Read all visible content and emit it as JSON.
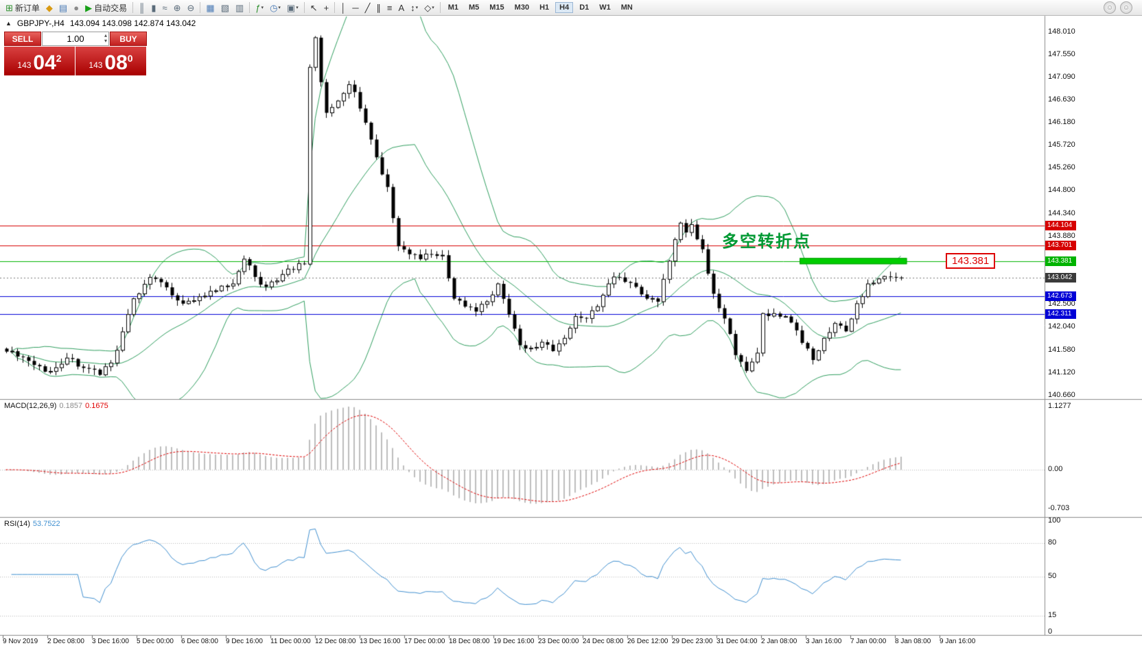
{
  "toolbar": {
    "buttons": [
      {
        "name": "new-order-button",
        "glyph": "⊞",
        "color": "#2e8f2e",
        "label": "新订单"
      },
      {
        "name": "history-center-icon",
        "glyph": "◆",
        "color": "#d99a12"
      },
      {
        "name": "market-watch-icon",
        "glyph": "▤",
        "color": "#4a7ab5"
      },
      {
        "name": "data-window-icon",
        "glyph": "●",
        "color": "#8a8a8a"
      },
      {
        "name": "autotrade-button",
        "glyph": "▶",
        "color": "#18a018",
        "label": "自动交易"
      },
      {
        "sep": true
      },
      {
        "name": "bar-chart-icon",
        "glyph": "║",
        "color": "#5a6b7a"
      },
      {
        "name": "candlestick-chart-icon",
        "glyph": "▮",
        "color": "#5a6b7a"
      },
      {
        "name": "line-chart-icon",
        "glyph": "≈",
        "color": "#5a6b7a"
      },
      {
        "name": "zoom-in-icon",
        "glyph": "⊕",
        "color": "#5a6b7a"
      },
      {
        "name": "zoom-out-icon",
        "glyph": "⊖",
        "color": "#5a6b7a"
      },
      {
        "sep": true
      },
      {
        "name": "tile-windows-icon",
        "glyph": "▦",
        "color": "#4a7ab5"
      },
      {
        "name": "cascade-windows-icon",
        "glyph": "▧",
        "color": "#5a6b7a"
      },
      {
        "name": "arrange-windows-icon",
        "glyph": "▥",
        "color": "#5a6b7a"
      },
      {
        "sep": true
      },
      {
        "name": "indicators-icon",
        "glyph": "ƒ",
        "color": "#2e8f2e",
        "caret": true
      },
      {
        "name": "periods-icon",
        "glyph": "◷",
        "color": "#4a7ab5",
        "caret": true
      },
      {
        "name": "templates-icon",
        "glyph": "▣",
        "color": "#5a6b7a",
        "caret": true
      },
      {
        "sep": true
      },
      {
        "name": "cursor-icon",
        "glyph": "↖",
        "color": "#333333"
      },
      {
        "name": "crosshair-icon",
        "glyph": "+",
        "color": "#333333"
      },
      {
        "sep": true
      },
      {
        "name": "vertical-line-icon",
        "glyph": "│",
        "color": "#333333"
      },
      {
        "name": "horizontal-line-icon",
        "glyph": "─",
        "color": "#333333"
      },
      {
        "name": "trendline-icon",
        "glyph": "╱",
        "color": "#333333"
      },
      {
        "name": "channel-icon",
        "glyph": "∥",
        "color": "#333333"
      },
      {
        "name": "fibonacci-icon",
        "glyph": "≡",
        "color": "#333333"
      },
      {
        "name": "text-icon",
        "glyph": "A",
        "color": "#333333"
      },
      {
        "name": "arrows-icon",
        "glyph": "↕",
        "color": "#333333",
        "caret": true
      },
      {
        "name": "shapes-icon",
        "glyph": "◇",
        "color": "#333333",
        "caret": true
      },
      {
        "sep": true
      }
    ],
    "timeframes": [
      "M1",
      "M5",
      "M15",
      "M30",
      "H1",
      "H4",
      "D1",
      "W1",
      "MN"
    ],
    "active_timeframe": "H4",
    "right_icons": [
      {
        "name": "community-icon",
        "glyph": "☺"
      },
      {
        "name": "support-icon",
        "glyph": "☺"
      }
    ]
  },
  "chart": {
    "symbol": "GBPJPY-,H4",
    "ohlc": "143.094 143.098 142.874 143.042",
    "collapse_glyph": "▲",
    "trade_panel": {
      "sell_label": "SELL",
      "buy_label": "BUY",
      "volume": "1.00",
      "sell_price": {
        "small": "143",
        "big": "04",
        "sup": "2"
      },
      "buy_price": {
        "small": "143",
        "big": "08",
        "sup": "0"
      }
    },
    "annotation": "多空转折点",
    "annotation_color": "#009933",
    "price_label_box": "143.381",
    "current_price": "143.042",
    "current_price_value": 143.042,
    "price_lines": [
      {
        "price": 144.104,
        "color": "#d60000",
        "label": "144.104"
      },
      {
        "price": 143.701,
        "color": "#d60000",
        "label": "143.701"
      },
      {
        "price": 143.381,
        "color": "#00b300",
        "label": "143.381"
      },
      {
        "price": 142.673,
        "color": "#0000d6",
        "label": "142.673"
      },
      {
        "price": 142.311,
        "color": "#0000d6",
        "label": "142.311"
      }
    ],
    "green_zone": {
      "price": 143.381,
      "start_index": 144,
      "end_index": 163.4
    },
    "y_axis_labels": [
      "148.010",
      "147.550",
      "147.090",
      "146.630",
      "146.180",
      "145.720",
      "145.260",
      "144.800",
      "144.340",
      "143.880",
      "142.500",
      "142.040",
      "141.580",
      "141.120",
      "140.660"
    ],
    "x_axis_labels": [
      "9 Nov 2019",
      "2 Dec 08:00",
      "3 Dec 16:00",
      "5 Dec 00:00",
      "6 Dec 08:00",
      "9 Dec 16:00",
      "11 Dec 00:00",
      "12 Dec 08:00",
      "13 Dec 16:00",
      "17 Dec 00:00",
      "18 Dec 08:00",
      "19 Dec 16:00",
      "23 Dec 00:00",
      "24 Dec 08:00",
      "26 Dec 12:00",
      "29 Dec 23:00",
      "31 Dec 04:00",
      "2 Jan 08:00",
      "3 Jan 16:00",
      "7 Jan 00:00",
      "8 Jan 08:00",
      "9 Jan 16:00"
    ],
    "candle_count": 163,
    "anchors": [
      [
        0,
        141.55
      ],
      [
        2,
        141.45
      ],
      [
        5,
        141.28
      ],
      [
        8,
        141.15
      ],
      [
        11,
        141.42
      ],
      [
        14,
        141.22
      ],
      [
        17,
        141.08
      ],
      [
        19,
        141.32
      ],
      [
        21,
        141.95
      ],
      [
        23,
        142.62
      ],
      [
        26,
        143.05
      ],
      [
        29,
        142.85
      ],
      [
        32,
        142.52
      ],
      [
        35,
        142.66
      ],
      [
        38,
        142.78
      ],
      [
        41,
        142.92
      ],
      [
        43,
        143.42
      ],
      [
        45,
        143.06
      ],
      [
        47,
        142.86
      ],
      [
        49,
        142.98
      ],
      [
        51,
        143.22
      ],
      [
        54,
        143.32
      ],
      [
        55,
        147.3
      ],
      [
        56,
        147.9
      ],
      [
        57,
        147.0
      ],
      [
        58,
        146.38
      ],
      [
        60,
        146.62
      ],
      [
        62,
        146.95
      ],
      [
        63,
        146.8
      ],
      [
        65,
        146.18
      ],
      [
        67,
        145.48
      ],
      [
        69,
        144.88
      ],
      [
        70,
        144.25
      ],
      [
        71,
        143.68
      ],
      [
        73,
        143.52
      ],
      [
        75,
        143.42
      ],
      [
        77,
        143.52
      ],
      [
        79,
        143.5
      ],
      [
        81,
        142.62
      ],
      [
        83,
        142.46
      ],
      [
        85,
        142.36
      ],
      [
        87,
        142.56
      ],
      [
        89,
        142.92
      ],
      [
        91,
        142.3
      ],
      [
        93,
        141.68
      ],
      [
        95,
        141.62
      ],
      [
        97,
        141.74
      ],
      [
        99,
        141.56
      ],
      [
        101,
        141.82
      ],
      [
        103,
        142.26
      ],
      [
        105,
        142.22
      ],
      [
        107,
        142.46
      ],
      [
        109,
        142.92
      ],
      [
        110,
        143.06
      ],
      [
        112,
        142.96
      ],
      [
        114,
        142.86
      ],
      [
        116,
        142.62
      ],
      [
        118,
        142.56
      ],
      [
        120,
        143.38
      ],
      [
        122,
        144.15
      ],
      [
        123,
        143.96
      ],
      [
        124,
        144.12
      ],
      [
        126,
        143.62
      ],
      [
        128,
        142.72
      ],
      [
        130,
        142.22
      ],
      [
        132,
        141.48
      ],
      [
        134,
        141.16
      ],
      [
        136,
        141.52
      ],
      [
        137,
        142.32
      ],
      [
        139,
        142.32
      ],
      [
        141,
        142.26
      ],
      [
        143,
        141.98
      ],
      [
        146,
        141.38
      ],
      [
        148,
        141.82
      ],
      [
        150,
        142.12
      ],
      [
        152,
        141.96
      ],
      [
        154,
        142.52
      ],
      [
        156,
        142.92
      ],
      [
        158,
        143.02
      ],
      [
        160,
        143.06
      ],
      [
        162,
        143.042
      ]
    ]
  },
  "macd": {
    "label": "MACD(12,26,9)",
    "main_value": "0.1857",
    "signal_value": "0.1675",
    "scale": [
      "1.1277",
      "0.00",
      "-0.703"
    ]
  },
  "rsi": {
    "label": "RSI(14)",
    "value": "53.7522",
    "scale": [
      "100",
      "80",
      "50",
      "15",
      "0"
    ],
    "levels": [
      80,
      50,
      15
    ]
  },
  "colors": {
    "bollinger": "#2e9e5e",
    "up_body": "#ffffff",
    "down_body": "#000000",
    "candle_border": "#000000",
    "macd_hist": "#bdbdbd",
    "macd_signal": "#e00000",
    "rsi_line": "#3f8fd0",
    "grid_dot": "#b5b5b5",
    "current_tag": "#3a3a3a",
    "green_zone_fill": "#00ce00",
    "green_zone_border": "#009900"
  }
}
